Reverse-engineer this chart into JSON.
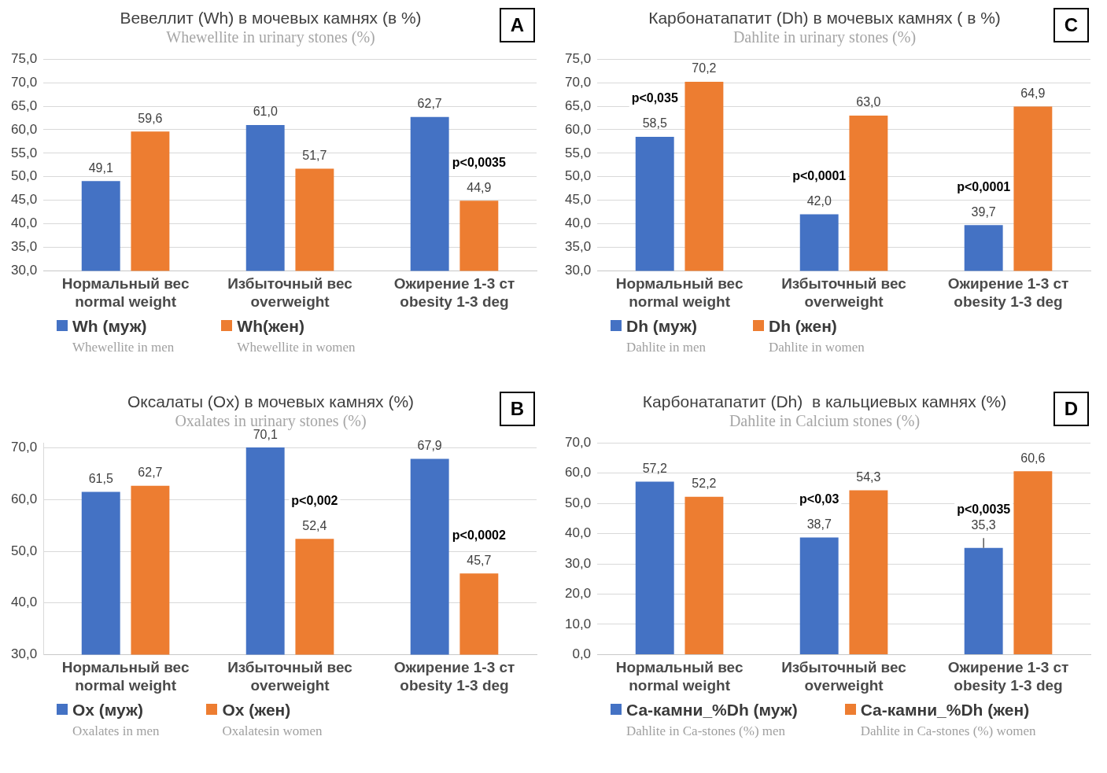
{
  "chart_data": [
    {
      "type": "bar",
      "title": "Вевеллит (Wh) в мочевых камнях (в %)",
      "subtitle": "Whewellite in urinary stones (%)",
      "categories": [
        "Нормальный вес\nnormal weight",
        "Избыточный вес\noverweight",
        "Ожирение 1-3 ст\nobesity 1-3 deg"
      ],
      "series": [
        {
          "name": "Wh (муж)\nWhewellite in men",
          "color": "#4472c4",
          "values": [
            49.1,
            61.0,
            62.7
          ],
          "value_labels": [
            "49,1",
            "61,0",
            "62,7"
          ]
        },
        {
          "name": "Wh(жен)\nWhewellite  in women",
          "color": "#ed7d31",
          "values": [
            59.6,
            51.7,
            44.9
          ],
          "value_labels": [
            "59,6",
            "51,7",
            "44,9"
          ]
        }
      ],
      "ylim": [
        30,
        75
      ],
      "yticks": [
        {
          "value": 30,
          "label": "30,0"
        },
        {
          "value": 35,
          "label": "35,0"
        },
        {
          "value": 40,
          "label": "40,0"
        },
        {
          "value": 45,
          "label": "45,0"
        },
        {
          "value": 50,
          "label": "50,0"
        },
        {
          "value": 55,
          "label": "55,0"
        },
        {
          "value": 60,
          "label": "60,0"
        },
        {
          "value": 65,
          "label": "65,0"
        },
        {
          "value": 70,
          "label": "70,0"
        },
        {
          "value": 75,
          "label": "75,0"
        }
      ],
      "grid": "y",
      "legend": "bottom",
      "annotations": [
        "A",
        "p<0,0035"
      ]
    },
    {
      "type": "bar",
      "title": "Карбонатапатит (Dh) в мочевых камнях ( в %)",
      "subtitle": "Dahlite in urinary stones (%)",
      "categories": [
        "Нормальный вес\nnormal weight",
        "Избыточный вес\noverweight",
        "Ожирение 1-3 ст\nobesity 1-3 deg"
      ],
      "series": [
        {
          "name": "Dh (муж)\nDahlite in men",
          "color": "#4472c4",
          "values": [
            58.5,
            42.0,
            39.7
          ],
          "value_labels": [
            "58,5",
            "42,0",
            "39,7"
          ]
        },
        {
          "name": "Dh (жен)\nDahlite in women",
          "color": "#ed7d31",
          "values": [
            70.2,
            63.0,
            64.9
          ],
          "value_labels": [
            "70,2",
            "63,0",
            "64,9"
          ]
        }
      ],
      "ylim": [
        30,
        75
      ],
      "yticks": [
        {
          "value": 30,
          "label": "30,0"
        },
        {
          "value": 35,
          "label": "35,0"
        },
        {
          "value": 40,
          "label": "40,0"
        },
        {
          "value": 45,
          "label": "45,0"
        },
        {
          "value": 50,
          "label": "50,0"
        },
        {
          "value": 55,
          "label": "55,0"
        },
        {
          "value": 60,
          "label": "60,0"
        },
        {
          "value": 65,
          "label": "65,0"
        },
        {
          "value": 70,
          "label": "70,0"
        },
        {
          "value": 75,
          "label": "75,0"
        }
      ],
      "grid": "y",
      "legend": "bottom",
      "annotations": [
        "C",
        "p<0,035",
        "p<0,0001",
        "p<0,0001"
      ]
    },
    {
      "type": "bar",
      "title": "Оксалаты (Ox) в мочевых камнях (%)",
      "subtitle": "Oxalates in urinary stones (%)",
      "categories": [
        "Нормальный вес\nnormal weight",
        "Избыточный вес\noverweight",
        "Ожирение 1-3 ст\nobesity 1-3 deg"
      ],
      "series": [
        {
          "name": "Ox (муж)\nOxalates in men",
          "color": "#4472c4",
          "values": [
            61.5,
            70.1,
            67.9
          ],
          "value_labels": [
            "61,5",
            "70,1",
            "67,9"
          ]
        },
        {
          "name": "Ox  (жен)\nOxalatesin women",
          "color": "#ed7d31",
          "values": [
            62.7,
            52.4,
            45.7
          ],
          "value_labels": [
            "62,7",
            "52,4",
            "45,7"
          ]
        }
      ],
      "ylim": [
        30,
        71
      ],
      "yticks": [
        {
          "value": 30,
          "label": "30,0"
        },
        {
          "value": 40,
          "label": "40,0"
        },
        {
          "value": 50,
          "label": "50,0"
        },
        {
          "value": 60,
          "label": "60,0"
        },
        {
          "value": 70,
          "label": "70,0"
        }
      ],
      "grid": "y",
      "legend": "bottom",
      "annotations": [
        "B",
        "p<0,002",
        "p<0,0002"
      ]
    },
    {
      "type": "bar",
      "title": "Карбонатапатит (Dh)  в кальциевых камнях (%)",
      "subtitle": "Dahlite in Calcium stones (%)",
      "categories": [
        "Нормальный вес\nnormal weight",
        "Избыточный вес\noverweight",
        "Ожирение 1-3 ст\nobesity 1-3 deg"
      ],
      "series": [
        {
          "name": "Са-камни_%Dh (муж)\nDahlite in Ca-stones (%) men",
          "color": "#4472c4",
          "values": [
            57.2,
            38.7,
            35.3
          ],
          "value_labels": [
            "57,2",
            "38,7",
            "35,3"
          ],
          "errors": [
            null,
            null,
            [
              35.3,
              38.5
            ]
          ]
        },
        {
          "name": "Са-камни_%Dh (жен)\nDahlite in Ca-stones (%) women",
          "color": "#ed7d31",
          "values": [
            52.2,
            54.3,
            60.6
          ],
          "value_labels": [
            "52,2",
            "54,3",
            "60,6"
          ]
        }
      ],
      "ylim": [
        0,
        70
      ],
      "yticks": [
        {
          "value": 0,
          "label": "0,0"
        },
        {
          "value": 10,
          "label": "10,0"
        },
        {
          "value": 20,
          "label": "20,0"
        },
        {
          "value": 30,
          "label": "30,0"
        },
        {
          "value": 40,
          "label": "40,0"
        },
        {
          "value": 50,
          "label": "50,0"
        },
        {
          "value": 60,
          "label": "60,0"
        },
        {
          "value": 70,
          "label": "70,0"
        }
      ],
      "grid": "y",
      "legend": "bottom",
      "annotations": [
        "D",
        "p<0,03",
        "p<0,0035"
      ]
    }
  ]
}
